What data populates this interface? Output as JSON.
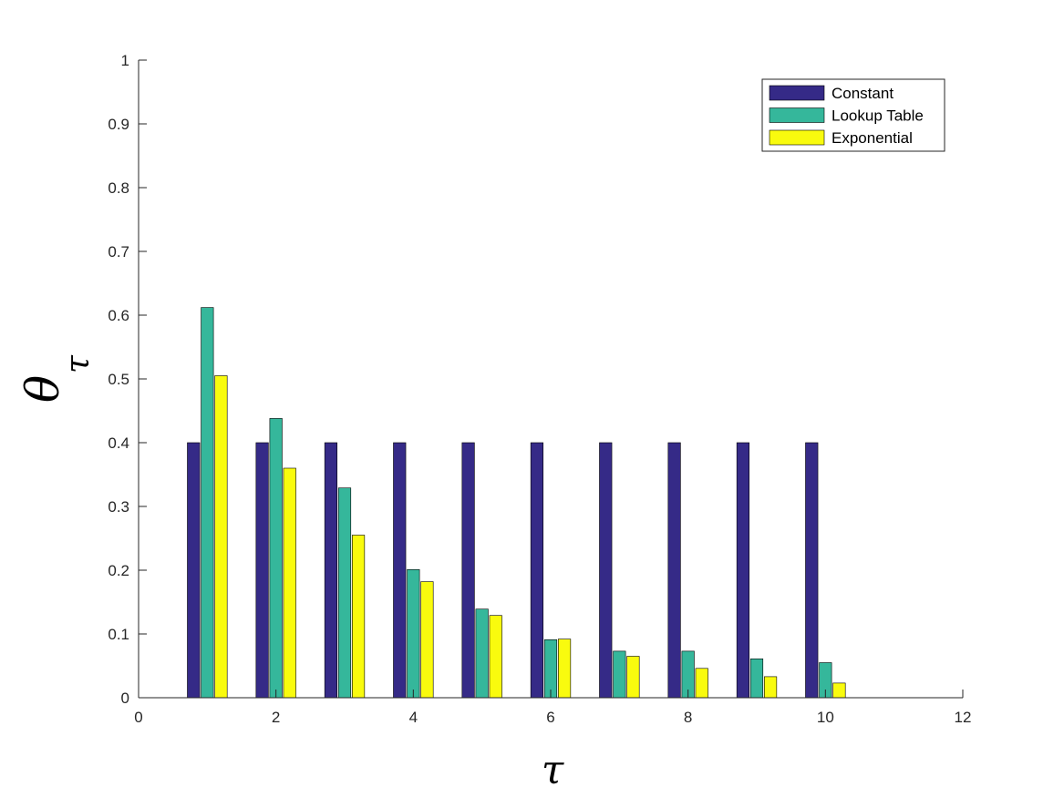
{
  "chart_data": {
    "type": "bar",
    "title": "",
    "xlabel": "τ",
    "ylabel": "θ",
    "ylabel_subscript": "τ",
    "x": [
      1,
      2,
      3,
      4,
      5,
      6,
      7,
      8,
      9,
      10
    ],
    "xlim": [
      0,
      12
    ],
    "ylim": [
      0,
      1
    ],
    "xticks": [
      0,
      2,
      4,
      6,
      8,
      10,
      12
    ],
    "yticks": [
      0,
      0.1,
      0.2,
      0.3,
      0.4,
      0.5,
      0.6,
      0.7,
      0.8,
      0.9,
      1
    ],
    "grid": false,
    "legend_position": "top-right",
    "series": [
      {
        "name": "Constant",
        "color": "#352a87",
        "values": [
          0.4,
          0.4,
          0.4,
          0.4,
          0.4,
          0.4,
          0.4,
          0.4,
          0.4,
          0.4
        ]
      },
      {
        "name": "Lookup Table",
        "color": "#35b79b",
        "values": [
          0.612,
          0.438,
          0.329,
          0.201,
          0.139,
          0.091,
          0.073,
          0.073,
          0.061,
          0.055
        ]
      },
      {
        "name": "Exponential",
        "color": "#f9fb0e",
        "values": [
          0.505,
          0.36,
          0.255,
          0.182,
          0.129,
          0.092,
          0.065,
          0.046,
          0.033,
          0.023
        ]
      }
    ]
  }
}
